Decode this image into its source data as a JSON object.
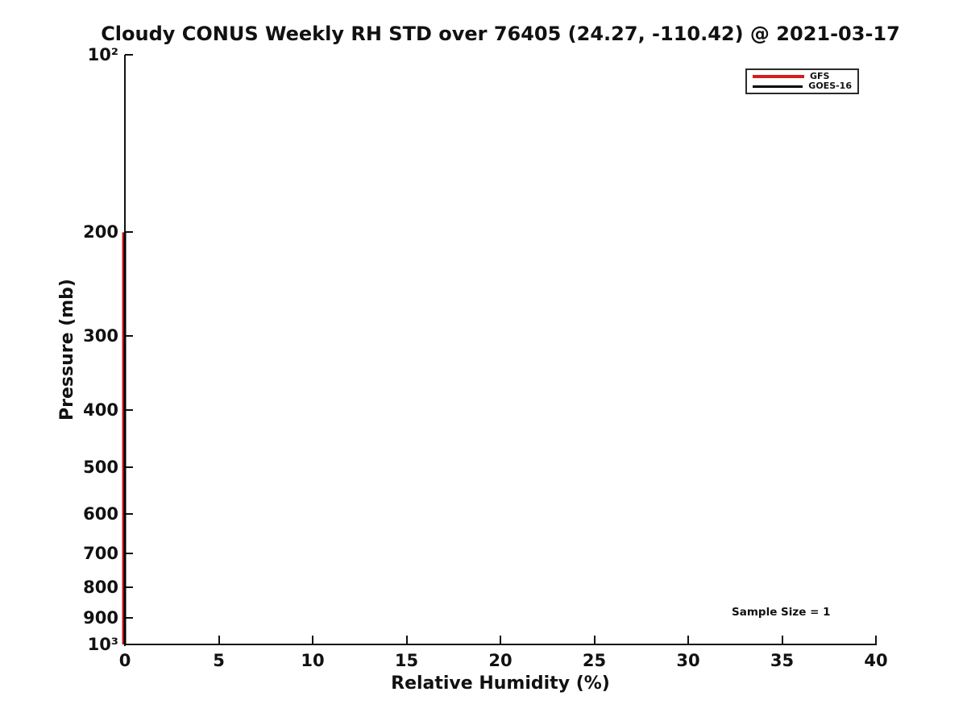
{
  "chart_data": {
    "type": "line",
    "title": "Cloudy CONUS Weekly RH STD over 76405 (24.27, -110.42) @ 2021-03-17",
    "xlabel": "Relative Humidity (%)",
    "ylabel": "Pressure (mb)",
    "xlim": [
      0,
      40
    ],
    "x_ticks": [
      0,
      5,
      10,
      15,
      20,
      25,
      30,
      35,
      40
    ],
    "y_scale": "log10",
    "y_axis_inverted": true,
    "ylim": [
      100,
      1000
    ],
    "y_ticks": [
      {
        "value": 100,
        "label": "10²"
      },
      {
        "value": 200,
        "label": "200"
      },
      {
        "value": 300,
        "label": "300"
      },
      {
        "value": 400,
        "label": "400"
      },
      {
        "value": 500,
        "label": "500"
      },
      {
        "value": 600,
        "label": "600"
      },
      {
        "value": 700,
        "label": "700"
      },
      {
        "value": 800,
        "label": "800"
      },
      {
        "value": 900,
        "label": "900"
      },
      {
        "value": 1000,
        "label": "10³"
      }
    ],
    "grid": false,
    "box": false,
    "legend_position": "top-right",
    "series": [
      {
        "name": "GFS",
        "color": "#d91a1e",
        "x": [
          0,
          0,
          0,
          0,
          0,
          0,
          0,
          0,
          0
        ],
        "y_pressure": [
          200,
          300,
          400,
          500,
          600,
          700,
          800,
          900,
          1000
        ]
      },
      {
        "name": "GOES-16",
        "color": "#000000",
        "x": [
          0,
          0,
          0,
          0,
          0,
          0,
          0,
          0,
          0
        ],
        "y_pressure": [
          200,
          300,
          400,
          500,
          600,
          700,
          800,
          900,
          1000
        ]
      }
    ],
    "annotation": {
      "text": "Sample Size = 1",
      "x": 32.4,
      "y_pressure": 890
    }
  }
}
